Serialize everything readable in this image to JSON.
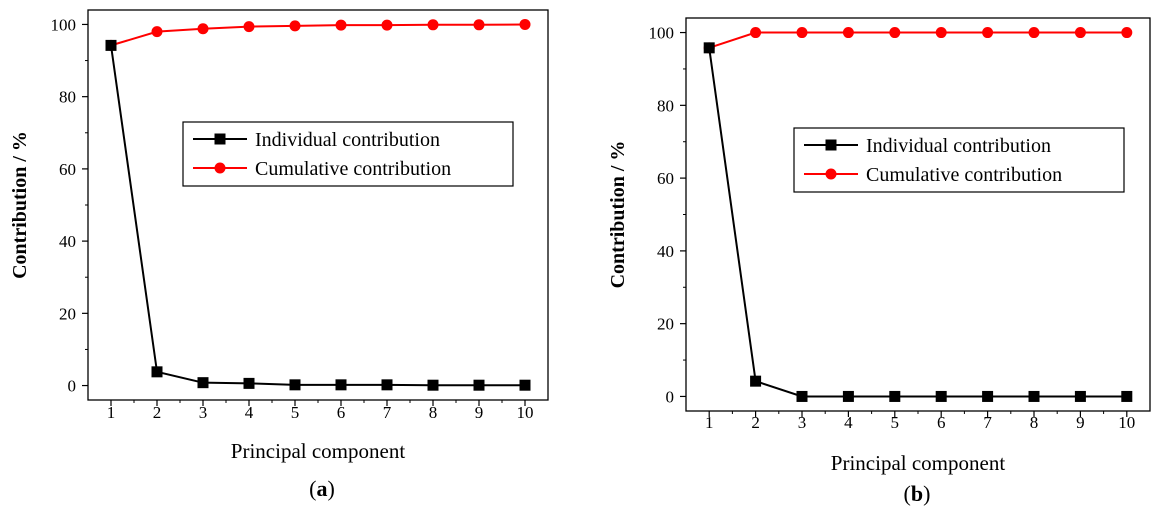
{
  "chart_data": [
    {
      "type": "line",
      "panel_label": {
        "open": "(",
        "letter": "a",
        "close": ")"
      },
      "xlabel": "Principal component",
      "ylabel": "Contribution / %",
      "x": [
        1,
        2,
        3,
        4,
        5,
        6,
        7,
        8,
        9,
        10
      ],
      "xlim": [
        0.5,
        10.5
      ],
      "ylim": [
        -4,
        104
      ],
      "yticks": [
        0,
        20,
        40,
        60,
        80,
        100
      ],
      "grid": false,
      "legend_position": "center-right",
      "series": [
        {
          "name": "Individual contribution",
          "marker": "square",
          "color": "#000000",
          "values": [
            94.2,
            3.8,
            0.8,
            0.6,
            0.2,
            0.2,
            0.2,
            0.1,
            0.1,
            0.1
          ]
        },
        {
          "name": "Cumulative contribution",
          "marker": "circle",
          "color": "#ff0000",
          "values": [
            94.2,
            98.0,
            98.8,
            99.4,
            99.6,
            99.8,
            99.8,
            99.9,
            99.9,
            100.0
          ]
        }
      ]
    },
    {
      "type": "line",
      "panel_label": {
        "open": "(",
        "letter": "b",
        "close": ")"
      },
      "xlabel": "Principal component",
      "ylabel": "Contribution / %",
      "x": [
        1,
        2,
        3,
        4,
        5,
        6,
        7,
        8,
        9,
        10
      ],
      "xlim": [
        0.5,
        10.5
      ],
      "ylim": [
        -4,
        104
      ],
      "yticks": [
        0,
        20,
        40,
        60,
        80,
        100
      ],
      "grid": false,
      "legend_position": "center-right",
      "series": [
        {
          "name": "Individual contribution",
          "marker": "square",
          "color": "#000000",
          "values": [
            95.8,
            4.2,
            0.0,
            0.0,
            0.0,
            0.0,
            0.0,
            0.0,
            0.0,
            0.0
          ]
        },
        {
          "name": "Cumulative contribution",
          "marker": "circle",
          "color": "#ff0000",
          "values": [
            95.8,
            100.0,
            100.0,
            100.0,
            100.0,
            100.0,
            100.0,
            100.0,
            100.0,
            100.0
          ]
        }
      ]
    }
  ]
}
